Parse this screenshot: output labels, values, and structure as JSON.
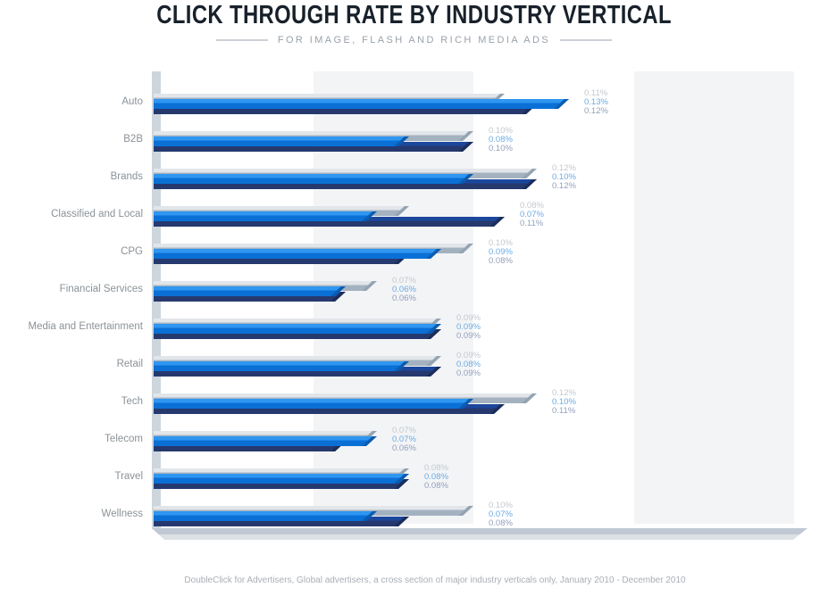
{
  "title": "CLICK THROUGH RATE BY INDUSTRY VERTICAL",
  "subtitle": "FOR IMAGE, FLASH AND RICH MEDIA ADS",
  "footer": "DoubleClick for Advertisers, Global advertisers, a cross section of major industry verticals only, January 2010 - December 2010",
  "colors": {
    "title_text": "#18212b",
    "subtitle_text": "#9aa2aa",
    "category_text": "#8b9298",
    "footer_text": "#a8afb6",
    "bar_gray": "#a4b2c0",
    "bar_gray_top": "#e2e6ea",
    "bar_light_blue": "#0a70d6",
    "bar_light_blue_top": "#2f96f1",
    "bar_dark_blue": "#26396f",
    "bar_dark_blue_top": "#1b479c",
    "grid_band": "#f3f4f6",
    "axis": "#cdd6dd",
    "value_label_gray": "#c2c9cf",
    "value_label_light_blue": "#6babe2",
    "value_label_dark_blue": "#93a0bb"
  },
  "chart_data": {
    "type": "bar",
    "orientation": "horizontal",
    "title": "CLICK THROUGH RATE BY INDUSTRY VERTICAL",
    "subtitle": "FOR IMAGE, FLASH AND RICH MEDIA ADS",
    "source": "DoubleClick for Advertisers, Global advertisers, a cross section of major industry verticals only, January 2010 - December 2010",
    "unit": "%",
    "xlim": [
      0,
      0.2
    ],
    "grid_band_step": 0.05,
    "legend": "none",
    "series_order_top_to_bottom": [
      "gray",
      "light-blue",
      "dark-blue"
    ],
    "series_colors": {
      "gray": "#a4b2c0",
      "light-blue": "#0a70d6",
      "dark-blue": "#26396f"
    },
    "categories": [
      "Auto",
      "B2B",
      "Brands",
      "Classified and Local",
      "CPG",
      "Financial Services",
      "Media and Entertainment",
      "Retail",
      "Tech",
      "Telecom",
      "Travel",
      "Wellness"
    ],
    "rows": [
      {
        "category": "Auto",
        "values": {
          "gray": 0.11,
          "light-blue": 0.13,
          "dark-blue": 0.12
        },
        "labels": [
          "0.11%",
          "0.13%",
          "0.12%"
        ]
      },
      {
        "category": "B2B",
        "values": {
          "gray": 0.1,
          "light-blue": 0.08,
          "dark-blue": 0.1
        },
        "labels": [
          "0.10%",
          "0.08%",
          "0.10%"
        ]
      },
      {
        "category": "Brands",
        "values": {
          "gray": 0.12,
          "light-blue": 0.1,
          "dark-blue": 0.12
        },
        "labels": [
          "0.12%",
          "0.10%",
          "0.12%"
        ]
      },
      {
        "category": "Classified and Local",
        "values": {
          "gray": 0.08,
          "light-blue": 0.07,
          "dark-blue": 0.11
        },
        "labels": [
          "0.08%",
          "0.07%",
          "0.11%"
        ]
      },
      {
        "category": "CPG",
        "values": {
          "gray": 0.1,
          "light-blue": 0.09,
          "dark-blue": 0.08
        },
        "labels": [
          "0.10%",
          "0.09%",
          "0.08%"
        ]
      },
      {
        "category": "Financial Services",
        "values": {
          "gray": 0.07,
          "light-blue": 0.06,
          "dark-blue": 0.06
        },
        "labels": [
          "0.07%",
          "0.06%",
          "0.06%"
        ]
      },
      {
        "category": "Media and Entertainment",
        "values": {
          "gray": 0.09,
          "light-blue": 0.09,
          "dark-blue": 0.09
        },
        "labels": [
          "0.09%",
          "0.09%",
          "0.09%"
        ]
      },
      {
        "category": "Retail",
        "values": {
          "gray": 0.09,
          "light-blue": 0.08,
          "dark-blue": 0.09
        },
        "labels": [
          "0.09%",
          "0.08%",
          "0.09%"
        ]
      },
      {
        "category": "Tech",
        "values": {
          "gray": 0.12,
          "light-blue": 0.1,
          "dark-blue": 0.11
        },
        "labels": [
          "0.12%",
          "0.10%",
          "0.11%"
        ]
      },
      {
        "category": "Telecom",
        "values": {
          "gray": 0.07,
          "light-blue": 0.07,
          "dark-blue": 0.06
        },
        "labels": [
          "0.07%",
          "0.07%",
          "0.06%"
        ]
      },
      {
        "category": "Travel",
        "values": {
          "gray": 0.08,
          "light-blue": 0.08,
          "dark-blue": 0.08
        },
        "labels": [
          "0.08%",
          "0.08%",
          "0.08%"
        ]
      },
      {
        "category": "Wellness",
        "values": {
          "gray": 0.1,
          "light-blue": 0.07,
          "dark-blue": 0.08
        },
        "labels": [
          "0.10%",
          "0.07%",
          "0.08%"
        ]
      }
    ]
  }
}
